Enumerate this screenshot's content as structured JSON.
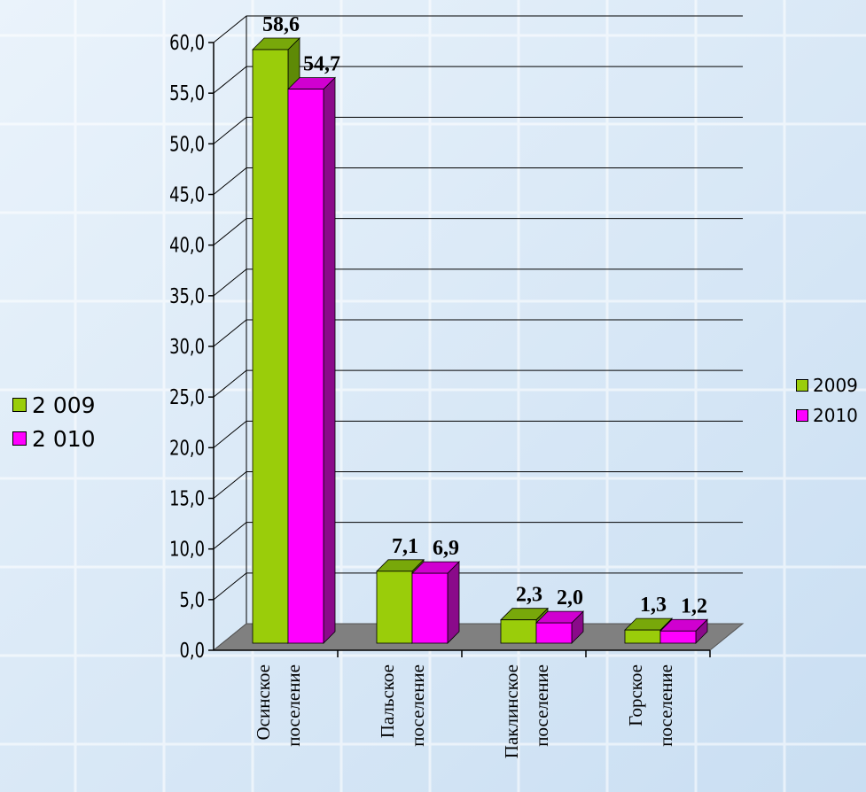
{
  "colors": {
    "series_2009_front": "#9acd0a",
    "series_2009_side": "#5e8a06",
    "series_2009_top": "#78a80a",
    "series_2010_front": "#ff00ff",
    "series_2010_side": "#8a0a8a",
    "series_2010_top": "#d000d0",
    "floor": "#808080",
    "gridline": "#000000",
    "background": "#dcebf8"
  },
  "legend_left": {
    "items": [
      {
        "label": "2 009",
        "color": "#9acd0a"
      },
      {
        "label": "2 010",
        "color": "#ff00ff"
      }
    ]
  },
  "legend_right": {
    "items": [
      {
        "label": "2009",
        "color": "#9acd0a"
      },
      {
        "label": "2010",
        "color": "#ff00ff"
      }
    ]
  },
  "chart_data": {
    "type": "bar",
    "style": "3d-clustered",
    "title": "",
    "xlabel": "",
    "ylabel": "",
    "ylim": [
      0,
      60
    ],
    "ytick_step": 5,
    "ytick_labels": [
      "0,0",
      "5,0",
      "10,0",
      "15,0",
      "20,0",
      "25,0",
      "30,0",
      "35,0",
      "40,0",
      "45,0",
      "50,0",
      "55,0",
      "60,0"
    ],
    "grid": true,
    "categories": [
      [
        "Осинское",
        "поселение"
      ],
      [
        "Пальское",
        "поселение"
      ],
      [
        "Паклинское",
        "поселение"
      ],
      [
        "Горское",
        "поселение"
      ]
    ],
    "series": [
      {
        "name": "2009",
        "values": [
          58.6,
          7.1,
          2.3,
          1.3
        ],
        "labels": [
          "58,6",
          "7,1",
          "2,3",
          "1,3"
        ]
      },
      {
        "name": "2010",
        "values": [
          54.7,
          6.9,
          2.0,
          1.2
        ],
        "labels": [
          "54,7",
          "6,9",
          "2,0",
          "1,2"
        ]
      }
    ]
  }
}
